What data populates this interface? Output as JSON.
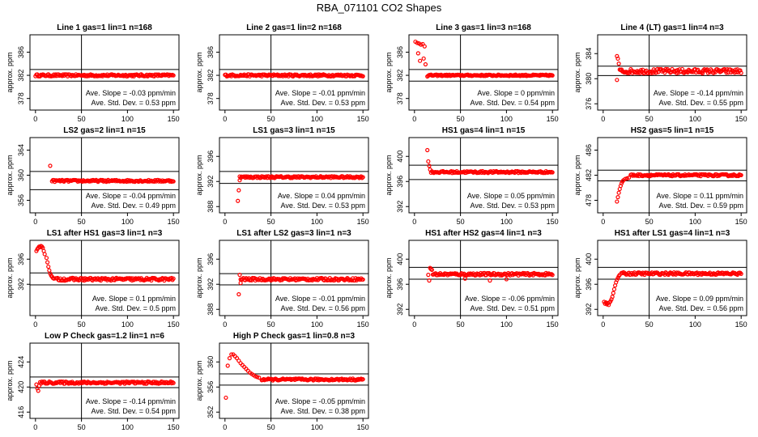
{
  "title": "RBA_071101  CO2 Shapes",
  "colors": {
    "points": "#ff0000",
    "axes": "#000000",
    "background": "#ffffff"
  },
  "chart_data": [
    {
      "type": "scatter",
      "title": "Line 1 gas=1 lin=1 n=168",
      "ylabel": "approx. ppm",
      "xticks": [
        "0",
        "50",
        "100",
        "150"
      ],
      "yticks": [
        "378",
        "382",
        "386"
      ],
      "ylim": [
        376,
        389
      ],
      "xlim": [
        -6,
        156
      ],
      "hlines": [
        383,
        381
      ],
      "vline": 50,
      "xrange": [
        0,
        150
      ],
      "base": 382,
      "noise": 0.18,
      "points": [],
      "annotation": [
        "Ave. Slope = -0.03  ppm/min",
        "Ave. Std. Dev. = 0.53  ppm"
      ]
    },
    {
      "type": "scatter",
      "title": "Line 2 gas=1 lin=2 n=168",
      "ylabel": "approx. ppm",
      "xticks": [
        "0",
        "50",
        "100",
        "150"
      ],
      "yticks": [
        "378",
        "382",
        "386"
      ],
      "ylim": [
        376,
        389
      ],
      "xlim": [
        -6,
        156
      ],
      "hlines": [
        383,
        381
      ],
      "vline": 50,
      "xrange": [
        0,
        150
      ],
      "base": 382,
      "noise": 0.18,
      "points": [],
      "annotation": [
        "Ave. Slope = -0.01  ppm/min",
        "Ave. Std. Dev. = 0.53  ppm"
      ]
    },
    {
      "type": "scatter",
      "title": "Line 3 gas=1 lin=3 n=168",
      "ylabel": "approx. ppm",
      "xticks": [
        "0",
        "50",
        "100",
        "150"
      ],
      "yticks": [
        "378",
        "382",
        "386"
      ],
      "ylim": [
        376,
        389
      ],
      "xlim": [
        -6,
        156
      ],
      "hlines": [
        383,
        381
      ],
      "vline": 50,
      "xrange": [
        15,
        150
      ],
      "base": 382,
      "noise": 0.12,
      "points": [
        [
          1,
          387.8
        ],
        [
          3,
          387.6
        ],
        [
          5,
          387.5
        ],
        [
          7,
          387.3
        ],
        [
          9,
          387.4
        ],
        [
          11,
          387
        ],
        [
          4,
          385.8
        ],
        [
          6,
          384.5
        ],
        [
          10,
          384.9
        ],
        [
          12,
          383.9
        ],
        [
          14,
          381.8
        ]
      ],
      "annotation": [
        "Ave. Slope = 0  ppm/min",
        "Ave. Std. Dev. = 0.54  ppm"
      ]
    },
    {
      "type": "scatter",
      "title": "Line 4 (LT) gas=1 lin=4 n=3",
      "ylabel": "approx. ppm",
      "xticks": [
        "0",
        "50",
        "100",
        "150"
      ],
      "yticks": [
        "376",
        "380",
        "384"
      ],
      "ylim": [
        375,
        387
      ],
      "xlim": [
        -6,
        156
      ],
      "hlines": [
        382,
        380.5
      ],
      "vline": 50,
      "xrange": [
        18,
        150
      ],
      "base": 381.2,
      "noise": 0.35,
      "points": [
        [
          15,
          383.6
        ],
        [
          16,
          383.2
        ],
        [
          17,
          382.4
        ],
        [
          15,
          379.8
        ]
      ],
      "annotation": [
        "Ave. Slope = -0.14  ppm/min",
        "Ave. Std. Dev. = 0.55  ppm"
      ]
    },
    {
      "type": "scatter",
      "title": "LS2 gas=2 lin=1 n=15",
      "ylabel": "approx. ppm",
      "xticks": [
        "0",
        "50",
        "100",
        "150"
      ],
      "yticks": [
        "356",
        "360",
        "364"
      ],
      "ylim": [
        354,
        366
      ],
      "xlim": [
        -6,
        156
      ],
      "hlines": [
        360.6,
        357.7
      ],
      "vline": 50,
      "xrange": [
        18,
        150
      ],
      "base": 359.1,
      "noise": 0.15,
      "points": [
        [
          16,
          361.5
        ]
      ],
      "annotation": [
        "Ave. Slope = -0.04  ppm/min",
        "Ave. Std. Dev. = 0.49  ppm"
      ]
    },
    {
      "type": "scatter",
      "title": "LS1 gas=3 lin=1 n=15",
      "ylabel": "approx. ppm",
      "xticks": [
        "0",
        "50",
        "100",
        "150"
      ],
      "yticks": [
        "388",
        "392",
        "396"
      ],
      "ylim": [
        387,
        399
      ],
      "xlim": [
        -6,
        156
      ],
      "hlines": [
        393.6,
        391.7
      ],
      "vline": 50,
      "xrange": [
        16,
        150
      ],
      "base": 392.7,
      "noise": 0.15,
      "points": [
        [
          14,
          388.9
        ],
        [
          15,
          390.6
        ],
        [
          16,
          392.2
        ]
      ],
      "annotation": [
        "Ave. Slope = 0.04  ppm/min",
        "Ave. Std. Dev. = 0.53  ppm"
      ]
    },
    {
      "type": "scatter",
      "title": "HS1 gas=4 lin=1 n=15",
      "ylabel": "approx. ppm",
      "xticks": [
        "0",
        "50",
        "100",
        "150"
      ],
      "yticks": [
        "392",
        "396",
        "400"
      ],
      "ylim": [
        391,
        403
      ],
      "xlim": [
        -6,
        156
      ],
      "hlines": [
        398.6,
        396.3
      ],
      "vline": 50,
      "xrange": [
        18,
        150
      ],
      "base": 397.5,
      "noise": 0.15,
      "points": [
        [
          14,
          401
        ],
        [
          15,
          399.2
        ],
        [
          16,
          398.5
        ],
        [
          17,
          397.9
        ]
      ],
      "annotation": [
        "Ave. Slope = 0.05  ppm/min",
        "Ave. Std. Dev. = 0.53  ppm"
      ]
    },
    {
      "type": "scatter",
      "title": "HS2 gas=5 lin=1 n=15",
      "ylabel": "approx. ppm",
      "xticks": [
        "0",
        "50",
        "100",
        "150"
      ],
      "yticks": [
        "478",
        "482",
        "486"
      ],
      "ylim": [
        476,
        488
      ],
      "xlim": [
        -6,
        156
      ],
      "hlines": [
        482.8,
        481.1
      ],
      "vline": 50,
      "xrange": [
        30,
        150
      ],
      "base": 482,
      "noise": 0.15,
      "points": [
        [
          15,
          477.8
        ],
        [
          16,
          478.5
        ],
        [
          17,
          479.2
        ],
        [
          18,
          479.8
        ],
        [
          19,
          480.3
        ],
        [
          20,
          480.7
        ],
        [
          21,
          481
        ],
        [
          22,
          481.2
        ],
        [
          24,
          481.4
        ],
        [
          26,
          481.5
        ],
        [
          28,
          481.6
        ]
      ],
      "annotation": [
        "Ave. Slope = 0.11  ppm/min",
        "Ave. Std. Dev. = 0.59  ppm"
      ]
    },
    {
      "type": "scatter",
      "title": "LS1 after HS1 gas=3 lin=1 n=3",
      "ylabel": "approx. ppm",
      "xticks": [
        "0",
        "50",
        "100",
        "150"
      ],
      "yticks": [
        "392",
        "396"
      ],
      "ylim": [
        387,
        399
      ],
      "xlim": [
        -6,
        156
      ],
      "hlines": [
        393.8,
        391.9
      ],
      "vline": 50,
      "xrange": [
        22,
        150
      ],
      "base": 392.8,
      "noise": 0.22,
      "points": [
        [
          1,
          397.3
        ],
        [
          2,
          397.6
        ],
        [
          3,
          397.8
        ],
        [
          4,
          398
        ],
        [
          5,
          397.9
        ],
        [
          6,
          398.1
        ],
        [
          7,
          398
        ],
        [
          8,
          397.8
        ],
        [
          9,
          397.3
        ],
        [
          10,
          396.8
        ],
        [
          12,
          396.2
        ],
        [
          13,
          395.5
        ],
        [
          14,
          394.8
        ],
        [
          15,
          394.2
        ],
        [
          16,
          393.7
        ],
        [
          17,
          393.4
        ],
        [
          18,
          393.2
        ],
        [
          19,
          393
        ],
        [
          20,
          392.9
        ]
      ],
      "annotation": [
        "Ave. Slope = 0.1  ppm/min",
        "Ave. Std. Dev. = 0.5  ppm"
      ]
    },
    {
      "type": "scatter",
      "title": "LS1 after LS2 gas=3 lin=1 n=3",
      "ylabel": "approx. ppm",
      "xticks": [
        "0",
        "50",
        "100",
        "150"
      ],
      "yticks": [
        "388",
        "392",
        "396"
      ],
      "ylim": [
        387,
        399
      ],
      "xlim": [
        -6,
        156
      ],
      "hlines": [
        393.7,
        391.9
      ],
      "vline": 50,
      "xrange": [
        17,
        150
      ],
      "base": 392.8,
      "noise": 0.2,
      "points": [
        [
          15,
          390.4
        ],
        [
          16,
          393.5
        ],
        [
          17,
          392.2
        ]
      ],
      "annotation": [
        "Ave. Slope = -0.01  ppm/min",
        "Ave. Std. Dev. = 0.56  ppm"
      ]
    },
    {
      "type": "scatter",
      "title": "HS1 after HS2 gas=4 lin=1 n=3",
      "ylabel": "approx. ppm",
      "xticks": [
        "0",
        "50",
        "100",
        "150"
      ],
      "yticks": [
        "392",
        "396",
        "400"
      ],
      "ylim": [
        391,
        403
      ],
      "xlim": [
        -6,
        156
      ],
      "hlines": [
        398.7,
        396.8
      ],
      "vline": 50,
      "xrange": [
        20,
        150
      ],
      "base": 397.6,
      "noise": 0.2,
      "points": [
        [
          15,
          397.5
        ],
        [
          16,
          396.6
        ],
        [
          17,
          398.6
        ],
        [
          18,
          398.4
        ],
        [
          19,
          398.3
        ],
        [
          55,
          396.9
        ],
        [
          82,
          396.6
        ],
        [
          100,
          396.8
        ]
      ],
      "annotation": [
        "Ave. Slope = -0.06  ppm/min",
        "Ave. Std. Dev. = 0.51  ppm"
      ]
    },
    {
      "type": "scatter",
      "title": "HS1 after LS1 gas=4 lin=1 n=3",
      "ylabel": "approx. ppm",
      "xticks": [
        "0",
        "50",
        "100",
        "150"
      ],
      "yticks": [
        "392",
        "396",
        "400"
      ],
      "ylim": [
        391,
        403
      ],
      "xlim": [
        -6,
        156
      ],
      "hlines": [
        398.7,
        396.8
      ],
      "vline": 50,
      "xrange": [
        20,
        150
      ],
      "base": 397.7,
      "noise": 0.2,
      "points": [
        [
          1,
          393.2
        ],
        [
          2,
          392.9
        ],
        [
          3,
          393.1
        ],
        [
          4,
          392.8
        ],
        [
          5,
          393
        ],
        [
          6,
          392.7
        ],
        [
          7,
          393.1
        ],
        [
          8,
          393.3
        ],
        [
          9,
          393.6
        ],
        [
          10,
          394
        ],
        [
          11,
          394.6
        ],
        [
          12,
          395.2
        ],
        [
          13,
          395.8
        ],
        [
          14,
          396.3
        ],
        [
          15,
          396.7
        ],
        [
          16,
          397
        ],
        [
          17,
          397.3
        ],
        [
          18,
          397.5
        ]
      ],
      "annotation": [
        "Ave. Slope = 0.09  ppm/min",
        "Ave. Std. Dev. = 0.56  ppm"
      ]
    },
    {
      "type": "scatter",
      "title": "Low P Check gas=1.2 lin=1 n=6",
      "ylabel": "approx. ppm",
      "xticks": [
        "0",
        "50",
        "100",
        "150"
      ],
      "yticks": [
        "416",
        "420",
        "424"
      ],
      "ylim": [
        415,
        427
      ],
      "xlim": [
        -6,
        156
      ],
      "hlines": [
        421.6,
        419.9
      ],
      "vline": 50,
      "xrange": [
        5,
        150
      ],
      "base": 420.7,
      "noise": 0.18,
      "points": [
        [
          1,
          420.4
        ],
        [
          2,
          419.8
        ],
        [
          3,
          419.4
        ],
        [
          4,
          420.2
        ]
      ],
      "annotation": [
        "Ave. Slope = -0.14  ppm/min",
        "Ave. Std. Dev. = 0.54  ppm"
      ]
    },
    {
      "type": "scatter",
      "title": "High P Check gas=1 lin=0.8 n=3",
      "ylabel": "approx. ppm",
      "xticks": [
        "0",
        "50",
        "100",
        "150"
      ],
      "yticks": [
        "352",
        "356",
        "360"
      ],
      "ylim": [
        351,
        363
      ],
      "xlim": [
        -6,
        156
      ],
      "hlines": [
        358.1,
        356.3
      ],
      "vline": 50,
      "xrange": [
        40,
        150
      ],
      "base": 357.2,
      "noise": 0.15,
      "points": [
        [
          1,
          354.3
        ],
        [
          3,
          359.4
        ],
        [
          5,
          360.6
        ],
        [
          7,
          361.2
        ],
        [
          9,
          361.2
        ],
        [
          11,
          360.9
        ],
        [
          13,
          360.6
        ],
        [
          15,
          360.2
        ],
        [
          17,
          359.8
        ],
        [
          19,
          359.5
        ],
        [
          21,
          359.2
        ],
        [
          23,
          358.9
        ],
        [
          25,
          358.6
        ],
        [
          27,
          358.3
        ],
        [
          29,
          358.1
        ],
        [
          31,
          357.9
        ],
        [
          33,
          357.7
        ],
        [
          35,
          357.6
        ],
        [
          37,
          357.5
        ]
      ],
      "annotation": [
        "Ave. Slope = -0.05  ppm/min",
        "Ave. Std. Dev. = 0.38  ppm"
      ]
    }
  ]
}
